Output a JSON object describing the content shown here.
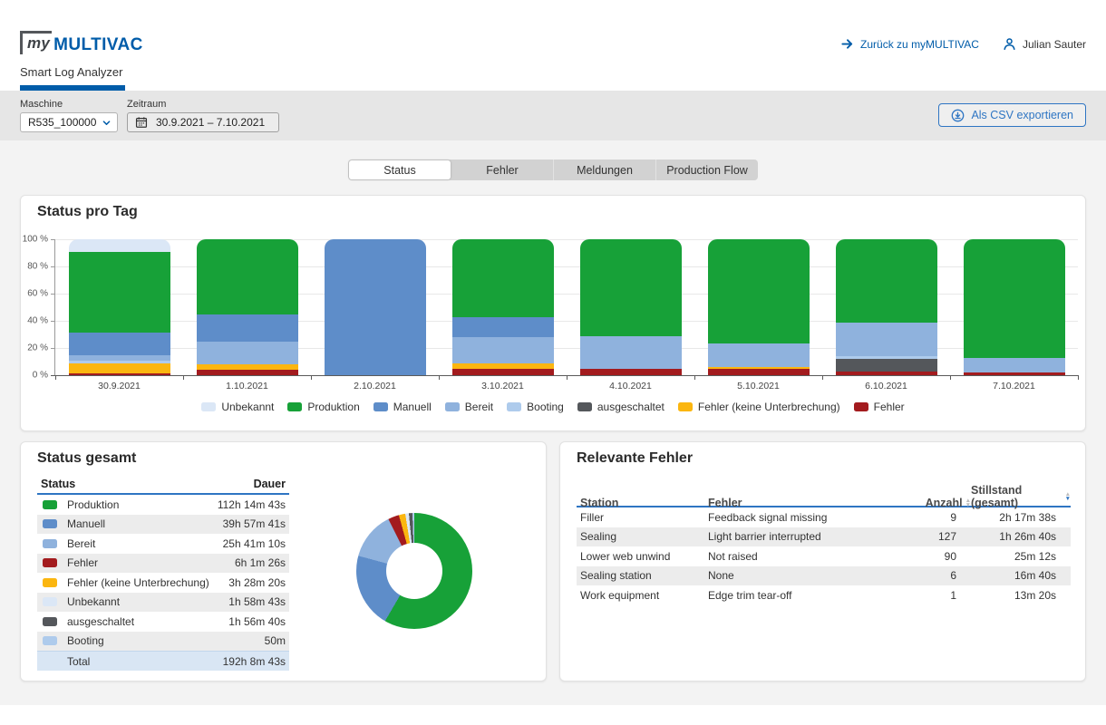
{
  "header": {
    "logo_my": "my",
    "logo_brand": "MULTIVAC",
    "back_link": "Zurück zu myMULTIVAC",
    "user_name": "Julian Sauter",
    "app_tab": "Smart Log Analyzer"
  },
  "toolbar": {
    "machine_label": "Maschine",
    "machine_value": "R535_100000",
    "period_label": "Zeitraum",
    "period_value": "30.9.2021 – 7.10.2021",
    "export_label": "Als CSV exportieren"
  },
  "tabs": [
    {
      "label": "Status",
      "active": true
    },
    {
      "label": "Fehler",
      "active": false
    },
    {
      "label": "Meldungen",
      "active": false
    },
    {
      "label": "Production Flow",
      "active": false
    }
  ],
  "colors": {
    "brand_blue": "#005ca9",
    "accent_blue": "#2e75c3",
    "total_row_bg": "#d9e6f4",
    "alt_row_bg": "#ececec"
  },
  "chart_data": {
    "type": "bar",
    "stacked": true,
    "title": "Status pro Tag",
    "categories": [
      "30.9.2021",
      "1.10.2021",
      "2.10.2021",
      "3.10.2021",
      "4.10.2021",
      "5.10.2021",
      "6.10.2021",
      "7.10.2021"
    ],
    "unit": "%",
    "ylim": [
      0,
      100
    ],
    "yticks": [
      0,
      20,
      40,
      60,
      80,
      100
    ],
    "ytick_suffix": " %",
    "grid": true,
    "legend_position": "bottom",
    "stack_order_bottom_to_top": [
      "Fehler",
      "Fehler (keine Unterbrechung)",
      "ausgeschaltet",
      "Booting",
      "Bereit",
      "Manuell",
      "Produktion",
      "Unbekannt"
    ],
    "series": [
      {
        "name": "Unbekannt",
        "color": "#dbe7f6",
        "values": [
          9.5,
          0,
          0,
          0,
          0,
          0,
          0,
          0
        ]
      },
      {
        "name": "Produktion",
        "color": "#17a138",
        "values": [
          59,
          55,
          0,
          57,
          71,
          76.5,
          61,
          87
        ]
      },
      {
        "name": "Manuell",
        "color": "#5e8dc9",
        "values": [
          17,
          20.5,
          100,
          15,
          0,
          0,
          0,
          0
        ]
      },
      {
        "name": "Bereit",
        "color": "#8fb2dd",
        "values": [
          4,
          16.5,
          0,
          19,
          24,
          17.5,
          25,
          11
        ]
      },
      {
        "name": "Booting",
        "color": "#aecbec",
        "values": [
          2,
          0,
          0,
          0,
          0,
          0,
          2,
          0
        ]
      },
      {
        "name": "ausgeschaltet",
        "color": "#54575b",
        "values": [
          0,
          0,
          0,
          0,
          0,
          0,
          9,
          0
        ]
      },
      {
        "name": "Fehler (keine Unterbrechung)",
        "color": "#fbb610",
        "values": [
          7,
          4.3,
          0,
          4,
          0,
          1.5,
          0,
          0
        ]
      },
      {
        "name": "Fehler",
        "color": "#a31b1e",
        "values": [
          1.5,
          3.7,
          0,
          5,
          5,
          4.5,
          3,
          2
        ]
      }
    ]
  },
  "status_gesamt": {
    "title": "Status gesamt",
    "columns": {
      "status": "Status",
      "dauer": "Dauer"
    },
    "rows": [
      {
        "status": "Produktion",
        "dauer": "112h 14m 43s"
      },
      {
        "status": "Manuell",
        "dauer": "39h 57m 41s"
      },
      {
        "status": "Bereit",
        "dauer": "25h 41m 10s"
      },
      {
        "status": "Fehler",
        "dauer": "6h 1m 26s"
      },
      {
        "status": "Fehler (keine Unterbrechung)",
        "dauer": "3h 28m 20s"
      },
      {
        "status": "Unbekannt",
        "dauer": "1h 58m 43s"
      },
      {
        "status": "ausgeschaltet",
        "dauer": "1h 56m 40s"
      },
      {
        "status": "Booting",
        "dauer": "50m"
      }
    ],
    "total": {
      "label": "Total",
      "dauer": "192h 8m 43s"
    },
    "donut": {
      "type": "pie",
      "segments": [
        {
          "label": "Produktion",
          "pct": 58.4
        },
        {
          "label": "Manuell",
          "pct": 20.8
        },
        {
          "label": "Bereit",
          "pct": 13.4
        },
        {
          "label": "Fehler",
          "pct": 3.1
        },
        {
          "label": "Fehler (keine Unterbrechung)",
          "pct": 1.8
        },
        {
          "label": "Unbekannt",
          "pct": 1.0
        },
        {
          "label": "ausgeschaltet",
          "pct": 1.0
        },
        {
          "label": "Booting",
          "pct": 0.5
        }
      ]
    }
  },
  "relevante_fehler": {
    "title": "Relevante Fehler",
    "columns": {
      "station": "Station",
      "fehler": "Fehler",
      "anzahl": "Anzahl",
      "stillstand": "Stillstand (gesamt)",
      "sorted_by": "stillstand",
      "sort_direction": "desc"
    },
    "rows": [
      {
        "station": "Filler",
        "fehler": "Feedback signal missing",
        "anzahl": "9",
        "stillstand": "2h 17m 38s"
      },
      {
        "station": "Sealing",
        "fehler": "Light barrier interrupted",
        "anzahl": "127",
        "stillstand": "1h 26m 40s"
      },
      {
        "station": "Lower web unwind",
        "fehler": "Not raised",
        "anzahl": "90",
        "stillstand": "25m 12s"
      },
      {
        "station": "Sealing station",
        "fehler": "None",
        "anzahl": "6",
        "stillstand": "16m 40s"
      },
      {
        "station": "Work equipment",
        "fehler": "Edge trim tear-off",
        "anzahl": "1",
        "stillstand": "13m 20s"
      }
    ]
  }
}
